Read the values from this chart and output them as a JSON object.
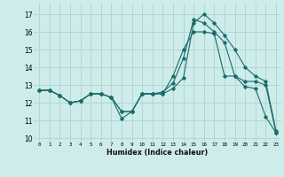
{
  "xlabel": "Humidex (Indice chaleur)",
  "background_color": "#cdecea",
  "grid_color": "#aed4d2",
  "line_color": "#1a6b6b",
  "xlim": [
    -0.5,
    23.5
  ],
  "ylim": [
    9.8,
    17.6
  ],
  "y_ticks": [
    10,
    11,
    12,
    13,
    14,
    15,
    16,
    17
  ],
  "x_ticks": [
    0,
    1,
    2,
    3,
    4,
    5,
    6,
    7,
    8,
    9,
    10,
    11,
    12,
    13,
    14,
    15,
    16,
    17,
    18,
    19,
    20,
    21,
    22,
    23
  ],
  "series1_x": [
    0,
    1,
    2,
    3,
    4,
    5,
    6,
    7,
    8,
    9,
    10,
    11,
    12,
    13,
    14,
    15,
    16,
    17,
    18,
    19,
    20,
    21,
    22,
    23
  ],
  "series1_y": [
    12.7,
    12.7,
    12.4,
    12.0,
    12.1,
    12.5,
    12.5,
    12.3,
    11.1,
    11.5,
    12.5,
    12.5,
    12.5,
    13.5,
    15.0,
    16.0,
    16.0,
    15.9,
    13.5,
    13.5,
    12.9,
    12.8,
    11.2,
    10.3
  ],
  "series2_x": [
    0,
    1,
    2,
    3,
    4,
    5,
    6,
    7,
    8,
    9,
    10,
    11,
    12,
    13,
    14,
    15,
    16,
    17,
    18,
    19,
    20,
    21,
    22,
    23
  ],
  "series2_y": [
    12.7,
    12.7,
    12.4,
    12.0,
    12.1,
    12.5,
    12.5,
    12.3,
    11.5,
    11.5,
    12.5,
    12.5,
    12.6,
    13.1,
    14.5,
    16.7,
    16.5,
    16.0,
    15.4,
    13.5,
    13.2,
    13.2,
    13.0,
    10.3
  ],
  "series3_x": [
    0,
    1,
    2,
    3,
    4,
    5,
    6,
    7,
    8,
    9,
    10,
    11,
    12,
    13,
    14,
    15,
    16,
    17,
    18,
    19,
    20,
    21,
    22,
    23
  ],
  "series3_y": [
    12.7,
    12.7,
    12.4,
    12.0,
    12.1,
    12.5,
    12.5,
    12.3,
    11.5,
    11.5,
    12.5,
    12.5,
    12.5,
    12.8,
    13.4,
    16.5,
    17.0,
    16.5,
    15.8,
    15.0,
    14.0,
    13.5,
    13.2,
    10.4
  ]
}
